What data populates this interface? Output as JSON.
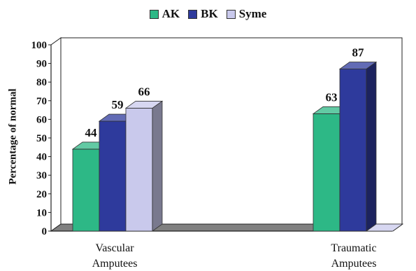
{
  "chart_data": {
    "type": "bar",
    "categories": [
      "Vascular Amputees",
      "Traumatic Amputees"
    ],
    "category_lines": [
      [
        "Vascular",
        "Amputees"
      ],
      [
        "Traumatic",
        "Amputees"
      ]
    ],
    "series": [
      {
        "name": "AK",
        "values": [
          44,
          63
        ],
        "color": "#2db886"
      },
      {
        "name": "BK",
        "values": [
          59,
          87
        ],
        "color": "#2e3a9c"
      },
      {
        "name": "Syme",
        "values": [
          66,
          0
        ],
        "color": "#c9c9ec"
      }
    ],
    "data_labels": [
      [
        "44",
        "63"
      ],
      [
        "59",
        "87"
      ],
      [
        "66",
        ""
      ]
    ],
    "ylabel": "Percentage of normal",
    "ylim": [
      0,
      100
    ],
    "yticks": [
      0,
      10,
      20,
      30,
      40,
      50,
      60,
      70,
      80,
      90,
      100
    ],
    "legend_position": "top-center",
    "grid": false,
    "style": "3d-bar"
  }
}
